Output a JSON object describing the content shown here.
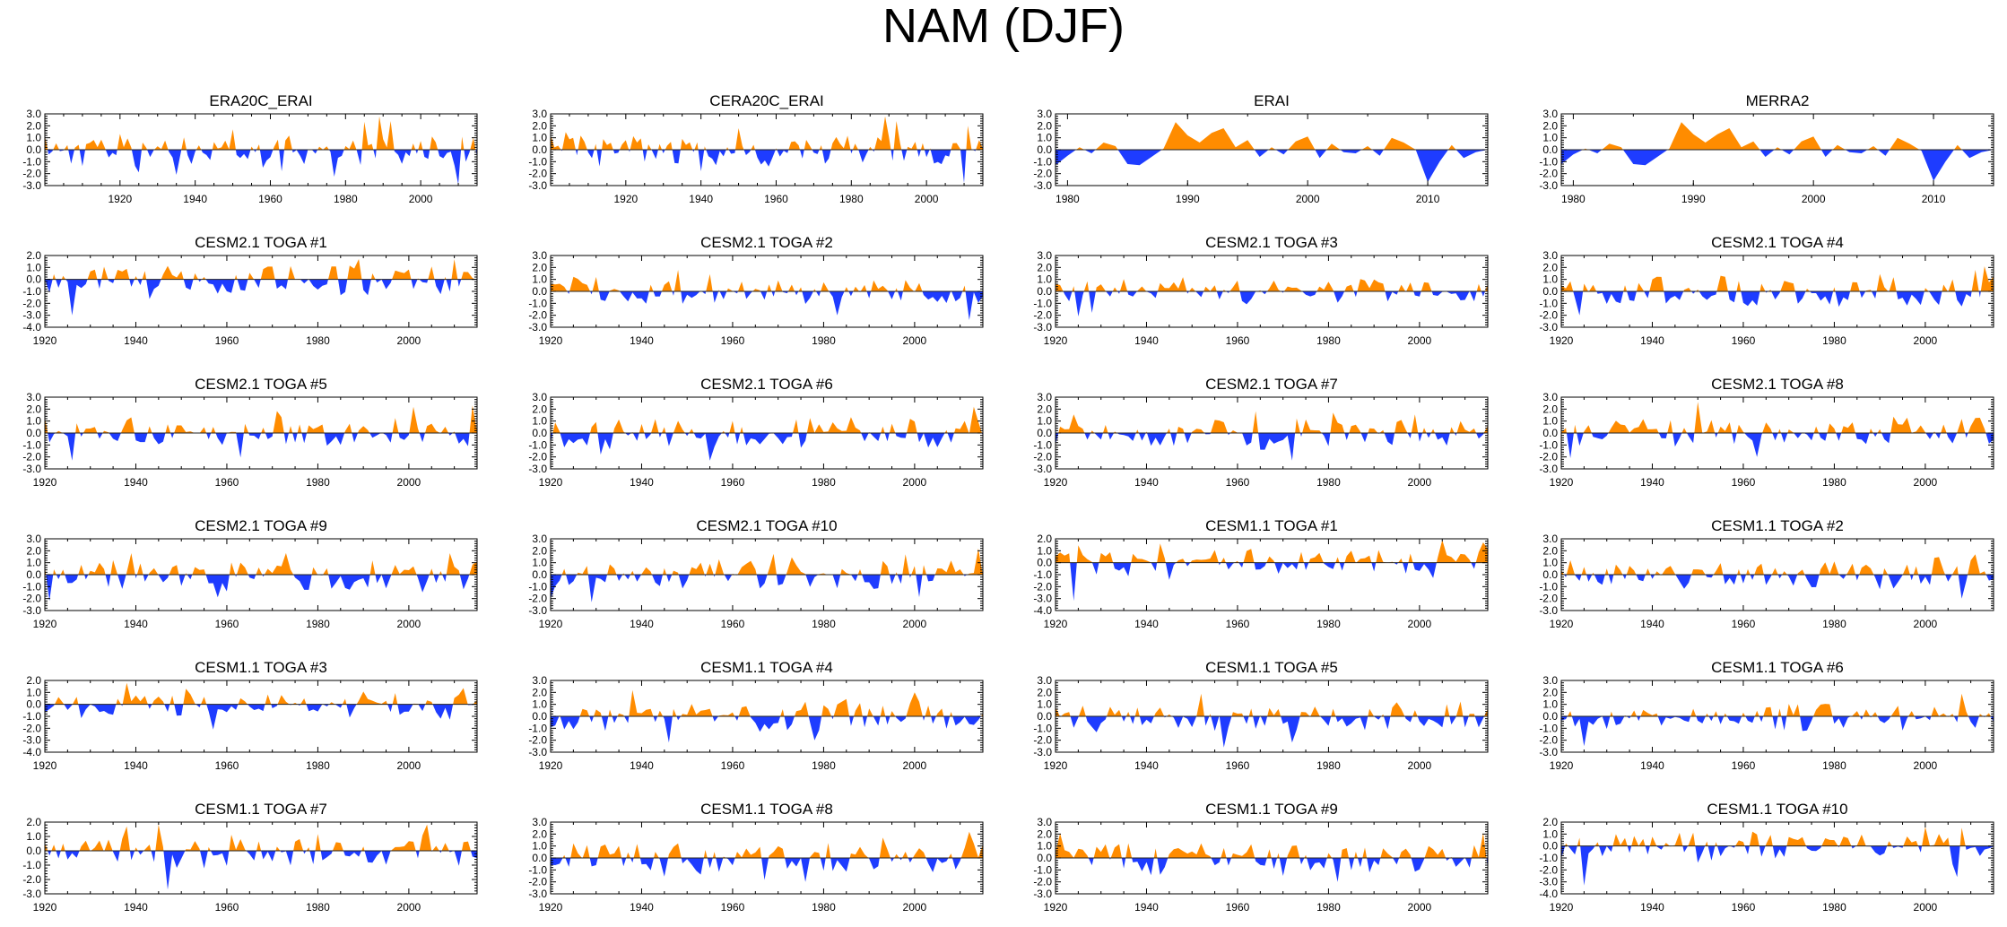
{
  "main_title": "NAM (DJF)",
  "colors": {
    "positive": "#ff8c00",
    "negative": "#1e3cff",
    "axis": "#000000"
  },
  "chart_data": [
    {
      "type": "area",
      "title": "ERA20C_ERAI",
      "x_start": 1900,
      "x_end": 2015,
      "xticks": [
        "1920",
        "1940",
        "1960",
        "1980",
        "2000"
      ],
      "ylim": [
        -3,
        3
      ],
      "yticks": [
        "3.0",
        "2.0",
        "1.0",
        "0.0",
        "-1.0",
        "-2.0",
        "-3.0"
      ],
      "seed": 11,
      "amp": 1.1,
      "peaks": [
        [
          1989,
          2.8
        ],
        [
          1992,
          2.4
        ],
        [
          2010,
          -2.9
        ],
        [
          1950,
          1.7
        ],
        [
          1925,
          -1.9
        ],
        [
          1935,
          -2.1
        ]
      ]
    },
    {
      "type": "area",
      "title": "CERA20C_ERAI",
      "x_start": 1900,
      "x_end": 2015,
      "xticks": [
        "1920",
        "1940",
        "1960",
        "1980",
        "2000"
      ],
      "ylim": [
        -3,
        3
      ],
      "yticks": [
        "3.0",
        "2.0",
        "1.0",
        "0.0",
        "-1.0",
        "-2.0",
        "-3.0"
      ],
      "seed": 23,
      "amp": 1.1,
      "peaks": [
        [
          1989,
          2.8
        ],
        [
          1992,
          2.4
        ],
        [
          2010,
          -2.8
        ],
        [
          1950,
          1.8
        ],
        [
          1940,
          -1.8
        ]
      ]
    },
    {
      "type": "area",
      "title": "ERAI",
      "x_start": 1979,
      "x_end": 2015,
      "xticks": [
        "1980",
        "1990",
        "2000",
        "2010"
      ],
      "ylim": [
        -3,
        3
      ],
      "yticks": [
        "3.0",
        "2.0",
        "1.0",
        "0.0",
        "-1.0",
        "-2.0",
        "-3.0"
      ],
      "seed": 0,
      "amp": 0,
      "points": [
        [
          1979,
          -1.3
        ],
        [
          1980,
          -0.5
        ],
        [
          1981,
          0.2
        ],
        [
          1982,
          -0.3
        ],
        [
          1983,
          0.6
        ],
        [
          1984,
          0.3
        ],
        [
          1985,
          -1.2
        ],
        [
          1986,
          -1.3
        ],
        [
          1987,
          -0.6
        ],
        [
          1988,
          0.1
        ],
        [
          1989,
          2.3
        ],
        [
          1990,
          1.2
        ],
        [
          1991,
          0.6
        ],
        [
          1992,
          1.4
        ],
        [
          1993,
          1.8
        ],
        [
          1994,
          0.2
        ],
        [
          1995,
          0.8
        ],
        [
          1996,
          -0.6
        ],
        [
          1997,
          0.2
        ],
        [
          1998,
          -0.4
        ],
        [
          1999,
          0.7
        ],
        [
          2000,
          1.1
        ],
        [
          2001,
          -0.7
        ],
        [
          2002,
          0.5
        ],
        [
          2003,
          -0.2
        ],
        [
          2004,
          -0.3
        ],
        [
          2005,
          0.3
        ],
        [
          2006,
          -0.5
        ],
        [
          2007,
          1.0
        ],
        [
          2008,
          0.6
        ],
        [
          2009,
          0.0
        ],
        [
          2010,
          -2.7
        ],
        [
          2011,
          -1.0
        ],
        [
          2012,
          0.4
        ],
        [
          2013,
          -0.7
        ],
        [
          2014,
          -0.2
        ],
        [
          2015,
          0.0
        ]
      ]
    },
    {
      "type": "area",
      "title": "MERRA2",
      "x_start": 1979,
      "x_end": 2015,
      "xticks": [
        "1980",
        "1990",
        "2000",
        "2010"
      ],
      "ylim": [
        -3,
        3
      ],
      "yticks": [
        "3.0",
        "2.0",
        "1.0",
        "0.0",
        "-1.0",
        "-2.0",
        "-3.0"
      ],
      "seed": 0,
      "amp": 0,
      "points": [
        [
          1979,
          -1.2
        ],
        [
          1980,
          -0.4
        ],
        [
          1981,
          0.1
        ],
        [
          1982,
          -0.3
        ],
        [
          1983,
          0.5
        ],
        [
          1984,
          0.2
        ],
        [
          1985,
          -1.2
        ],
        [
          1986,
          -1.3
        ],
        [
          1987,
          -0.6
        ],
        [
          1988,
          0.1
        ],
        [
          1989,
          2.3
        ],
        [
          1990,
          1.3
        ],
        [
          1991,
          0.6
        ],
        [
          1992,
          1.3
        ],
        [
          1993,
          1.8
        ],
        [
          1994,
          0.2
        ],
        [
          1995,
          0.7
        ],
        [
          1996,
          -0.6
        ],
        [
          1997,
          0.2
        ],
        [
          1998,
          -0.4
        ],
        [
          1999,
          0.7
        ],
        [
          2000,
          1.1
        ],
        [
          2001,
          -0.6
        ],
        [
          2002,
          0.4
        ],
        [
          2003,
          -0.2
        ],
        [
          2004,
          -0.3
        ],
        [
          2005,
          0.3
        ],
        [
          2006,
          -0.5
        ],
        [
          2007,
          1.0
        ],
        [
          2008,
          0.5
        ],
        [
          2009,
          -0.1
        ],
        [
          2010,
          -2.6
        ],
        [
          2011,
          -1.0
        ],
        [
          2012,
          0.4
        ],
        [
          2013,
          -0.7
        ],
        [
          2014,
          -0.2
        ],
        [
          2015,
          0.0
        ]
      ]
    },
    {
      "type": "area",
      "title": "CESM2.1 TOGA #1",
      "x_start": 1920,
      "x_end": 2015,
      "xticks": [
        "1920",
        "1940",
        "1960",
        "1980",
        "2000"
      ],
      "ylim": [
        -4,
        2
      ],
      "yticks": [
        "2.0",
        "1.0",
        "0.0",
        "-1.0",
        "-2.0",
        "-3.0",
        "-4.0"
      ],
      "seed": 31,
      "amp": 1.0,
      "peaks": [
        [
          1926,
          -3.0
        ],
        [
          1989,
          1.7
        ],
        [
          2010,
          1.7
        ]
      ]
    },
    {
      "type": "area",
      "title": "CESM2.1 TOGA #2",
      "x_start": 1920,
      "x_end": 2015,
      "xticks": [
        "1920",
        "1940",
        "1960",
        "1980",
        "2000"
      ],
      "ylim": [
        -3,
        3
      ],
      "yticks": [
        "3.0",
        "2.0",
        "1.0",
        "0.0",
        "-1.0",
        "-2.0",
        "-3.0"
      ],
      "seed": 37,
      "amp": 1.0,
      "peaks": [
        [
          2012,
          -2.4
        ],
        [
          1948,
          1.8
        ],
        [
          1983,
          -2.0
        ]
      ]
    },
    {
      "type": "area",
      "title": "CESM2.1 TOGA #3",
      "x_start": 1920,
      "x_end": 2015,
      "xticks": [
        "1920",
        "1940",
        "1960",
        "1980",
        "2000"
      ],
      "ylim": [
        -3,
        3
      ],
      "yticks": [
        "3.0",
        "2.0",
        "1.0",
        "0.0",
        "-1.0",
        "-2.0",
        "-3.0"
      ],
      "seed": 41,
      "amp": 0.9,
      "peaks": [
        [
          1925,
          -2.1
        ],
        [
          1928,
          -1.8
        ]
      ]
    },
    {
      "type": "area",
      "title": "CESM2.1 TOGA #4",
      "x_start": 1920,
      "x_end": 2015,
      "xticks": [
        "1920",
        "1940",
        "1960",
        "1980",
        "2000"
      ],
      "ylim": [
        -3,
        3
      ],
      "yticks": [
        "3.0",
        "2.0",
        "1.0",
        "0.0",
        "-1.0",
        "-2.0",
        "-3.0"
      ],
      "seed": 43,
      "amp": 1.0,
      "peaks": [
        [
          2013,
          2.1
        ],
        [
          2011,
          1.8
        ],
        [
          1924,
          -2.0
        ]
      ]
    },
    {
      "type": "area",
      "title": "CESM2.1 TOGA #5",
      "x_start": 1920,
      "x_end": 2015,
      "xticks": [
        "1920",
        "1940",
        "1960",
        "1980",
        "2000"
      ],
      "ylim": [
        -3,
        3
      ],
      "yticks": [
        "3.0",
        "2.0",
        "1.0",
        "0.0",
        "-1.0",
        "-2.0",
        "-3.0"
      ],
      "seed": 47,
      "amp": 1.0,
      "peaks": [
        [
          2014,
          2.3
        ],
        [
          2001,
          2.2
        ],
        [
          1926,
          -2.3
        ]
      ]
    },
    {
      "type": "area",
      "title": "CESM2.1 TOGA #6",
      "x_start": 1920,
      "x_end": 2015,
      "xticks": [
        "1920",
        "1940",
        "1960",
        "1980",
        "2000"
      ],
      "ylim": [
        -3,
        3
      ],
      "yticks": [
        "3.0",
        "2.0",
        "1.0",
        "0.0",
        "-1.0",
        "-2.0",
        "-3.0"
      ],
      "seed": 53,
      "amp": 1.0,
      "peaks": [
        [
          2013,
          2.2
        ],
        [
          1931,
          -1.8
        ],
        [
          1955,
          -2.3
        ]
      ]
    },
    {
      "type": "area",
      "title": "CESM2.1 TOGA #7",
      "x_start": 1920,
      "x_end": 2015,
      "xticks": [
        "1920",
        "1940",
        "1960",
        "1980",
        "2000"
      ],
      "ylim": [
        -3,
        3
      ],
      "yticks": [
        "3.0",
        "2.0",
        "1.0",
        "0.0",
        "-1.0",
        "-2.0",
        "-3.0"
      ],
      "seed": 59,
      "amp": 1.0,
      "peaks": [
        [
          1972,
          -2.3
        ],
        [
          1981,
          1.7
        ]
      ]
    },
    {
      "type": "area",
      "title": "CESM2.1 TOGA #8",
      "x_start": 1920,
      "x_end": 2015,
      "xticks": [
        "1920",
        "1940",
        "1960",
        "1980",
        "2000"
      ],
      "ylim": [
        -3,
        3
      ],
      "yticks": [
        "3.0",
        "2.0",
        "1.0",
        "0.0",
        "-1.0",
        "-2.0",
        "-3.0"
      ],
      "seed": 61,
      "amp": 1.0,
      "peaks": [
        [
          1950,
          2.6
        ],
        [
          1963,
          -2.0
        ],
        [
          1922,
          -2.1
        ]
      ]
    },
    {
      "type": "area",
      "title": "CESM2.1 TOGA #9",
      "x_start": 1920,
      "x_end": 2015,
      "xticks": [
        "1920",
        "1940",
        "1960",
        "1980",
        "2000"
      ],
      "ylim": [
        -3,
        3
      ],
      "yticks": [
        "3.0",
        "2.0",
        "1.0",
        "0.0",
        "-1.0",
        "-2.0",
        "-3.0"
      ],
      "seed": 67,
      "amp": 1.0,
      "peaks": [
        [
          1921,
          -2.2
        ],
        [
          1939,
          1.8
        ],
        [
          2009,
          1.8
        ]
      ]
    },
    {
      "type": "area",
      "title": "CESM2.1 TOGA #10",
      "x_start": 1920,
      "x_end": 2015,
      "xticks": [
        "1920",
        "1940",
        "1960",
        "1980",
        "2000"
      ],
      "ylim": [
        -3,
        3
      ],
      "yticks": [
        "3.0",
        "2.0",
        "1.0",
        "0.0",
        "-1.0",
        "-2.0",
        "-3.0"
      ],
      "seed": 71,
      "amp": 1.0,
      "peaks": [
        [
          1929,
          -2.3
        ],
        [
          2014,
          2.2
        ],
        [
          1998,
          1.7
        ]
      ]
    },
    {
      "type": "area",
      "title": "CESM1.1 TOGA #1",
      "x_start": 1920,
      "x_end": 2015,
      "xticks": [
        "1920",
        "1940",
        "1960",
        "1980",
        "2000"
      ],
      "ylim": [
        -4,
        2
      ],
      "yticks": [
        "2.0",
        "1.0",
        "0.0",
        "-1.0",
        "-2.0",
        "-3.0",
        "-4.0"
      ],
      "seed": 73,
      "amp": 0.9,
      "peaks": [
        [
          1924,
          -3.2
        ],
        [
          1943,
          1.6
        ],
        [
          2014,
          1.7
        ]
      ]
    },
    {
      "type": "area",
      "title": "CESM1.1 TOGA #2",
      "x_start": 1920,
      "x_end": 2015,
      "xticks": [
        "1920",
        "1940",
        "1960",
        "1980",
        "2000"
      ],
      "ylim": [
        -3,
        3
      ],
      "yticks": [
        "3.0",
        "2.0",
        "1.0",
        "0.0",
        "-1.0",
        "-2.0",
        "-3.0"
      ],
      "seed": 79,
      "amp": 0.9,
      "peaks": [
        [
          2011,
          1.7
        ],
        [
          2008,
          -2.0
        ]
      ]
    },
    {
      "type": "area",
      "title": "CESM1.1 TOGA #3",
      "x_start": 1920,
      "x_end": 2015,
      "xticks": [
        "1920",
        "1940",
        "1960",
        "1980",
        "2000"
      ],
      "ylim": [
        -4,
        2
      ],
      "yticks": [
        "2.0",
        "1.0",
        "0.0",
        "-1.0",
        "-2.0",
        "-3.0",
        "-4.0"
      ],
      "seed": 83,
      "amp": 0.9,
      "peaks": [
        [
          1938,
          1.8
        ],
        [
          1957,
          -2.1
        ]
      ]
    },
    {
      "type": "area",
      "title": "CESM1.1 TOGA #4",
      "x_start": 1920,
      "x_end": 2015,
      "xticks": [
        "1920",
        "1940",
        "1960",
        "1980",
        "2000"
      ],
      "ylim": [
        -3,
        3
      ],
      "yticks": [
        "3.0",
        "2.0",
        "1.0",
        "0.0",
        "-1.0",
        "-2.0",
        "-3.0"
      ],
      "seed": 89,
      "amp": 1.0,
      "peaks": [
        [
          2000,
          2.0
        ],
        [
          1946,
          -2.2
        ]
      ]
    },
    {
      "type": "area",
      "title": "CESM1.1 TOGA #5",
      "x_start": 1920,
      "x_end": 2015,
      "xticks": [
        "1920",
        "1940",
        "1960",
        "1980",
        "2000"
      ],
      "ylim": [
        -3,
        3
      ],
      "yticks": [
        "3.0",
        "2.0",
        "1.0",
        "0.0",
        "-1.0",
        "-2.0",
        "-3.0"
      ],
      "seed": 97,
      "amp": 1.0,
      "peaks": [
        [
          1952,
          1.9
        ],
        [
          1957,
          -2.6
        ],
        [
          1972,
          -2.2
        ]
      ]
    },
    {
      "type": "area",
      "title": "CESM1.1 TOGA #6",
      "x_start": 1920,
      "x_end": 2015,
      "xticks": [
        "1920",
        "1940",
        "1960",
        "1980",
        "2000"
      ],
      "ylim": [
        -3,
        3
      ],
      "yticks": [
        "3.0",
        "2.0",
        "1.0",
        "0.0",
        "-1.0",
        "-2.0",
        "-3.0"
      ],
      "seed": 101,
      "amp": 0.9,
      "peaks": [
        [
          1925,
          -2.5
        ],
        [
          2008,
          1.9
        ]
      ]
    },
    {
      "type": "area",
      "title": "CESM1.1 TOGA #7",
      "x_start": 1920,
      "x_end": 2015,
      "xticks": [
        "1920",
        "1940",
        "1960",
        "1980",
        "2000"
      ],
      "ylim": [
        -3,
        2
      ],
      "yticks": [
        "2.0",
        "1.0",
        "0.0",
        "-1.0",
        "-2.0",
        "-3.0"
      ],
      "seed": 103,
      "amp": 0.9,
      "peaks": [
        [
          1947,
          -2.7
        ],
        [
          1938,
          1.7
        ]
      ]
    },
    {
      "type": "area",
      "title": "CESM1.1 TOGA #8",
      "x_start": 1920,
      "x_end": 2015,
      "xticks": [
        "1920",
        "1940",
        "1960",
        "1980",
        "2000"
      ],
      "ylim": [
        -3,
        3
      ],
      "yticks": [
        "3.0",
        "2.0",
        "1.0",
        "0.0",
        "-1.0",
        "-2.0",
        "-3.0"
      ],
      "seed": 107,
      "amp": 1.0,
      "peaks": [
        [
          2012,
          2.2
        ],
        [
          1976,
          -2.0
        ]
      ]
    },
    {
      "type": "area",
      "title": "CESM1.1 TOGA #9",
      "x_start": 1920,
      "x_end": 2015,
      "xticks": [
        "1920",
        "1940",
        "1960",
        "1980",
        "2000"
      ],
      "ylim": [
        -3,
        3
      ],
      "yticks": [
        "3.0",
        "2.0",
        "1.0",
        "0.0",
        "-1.0",
        "-2.0",
        "-3.0"
      ],
      "seed": 109,
      "amp": 1.0,
      "peaks": [
        [
          2014,
          2.1
        ],
        [
          1982,
          -2.0
        ]
      ]
    },
    {
      "type": "area",
      "title": "CESM1.1 TOGA #10",
      "x_start": 1920,
      "x_end": 2015,
      "xticks": [
        "1920",
        "1940",
        "1960",
        "1980",
        "2000"
      ],
      "ylim": [
        -4,
        2
      ],
      "yticks": [
        "2.0",
        "1.0",
        "0.0",
        "-1.0",
        "-2.0",
        "-3.0",
        "-4.0"
      ],
      "seed": 113,
      "amp": 0.9,
      "peaks": [
        [
          1925,
          -3.3
        ],
        [
          2000,
          1.6
        ],
        [
          2007,
          -2.6
        ]
      ]
    }
  ]
}
